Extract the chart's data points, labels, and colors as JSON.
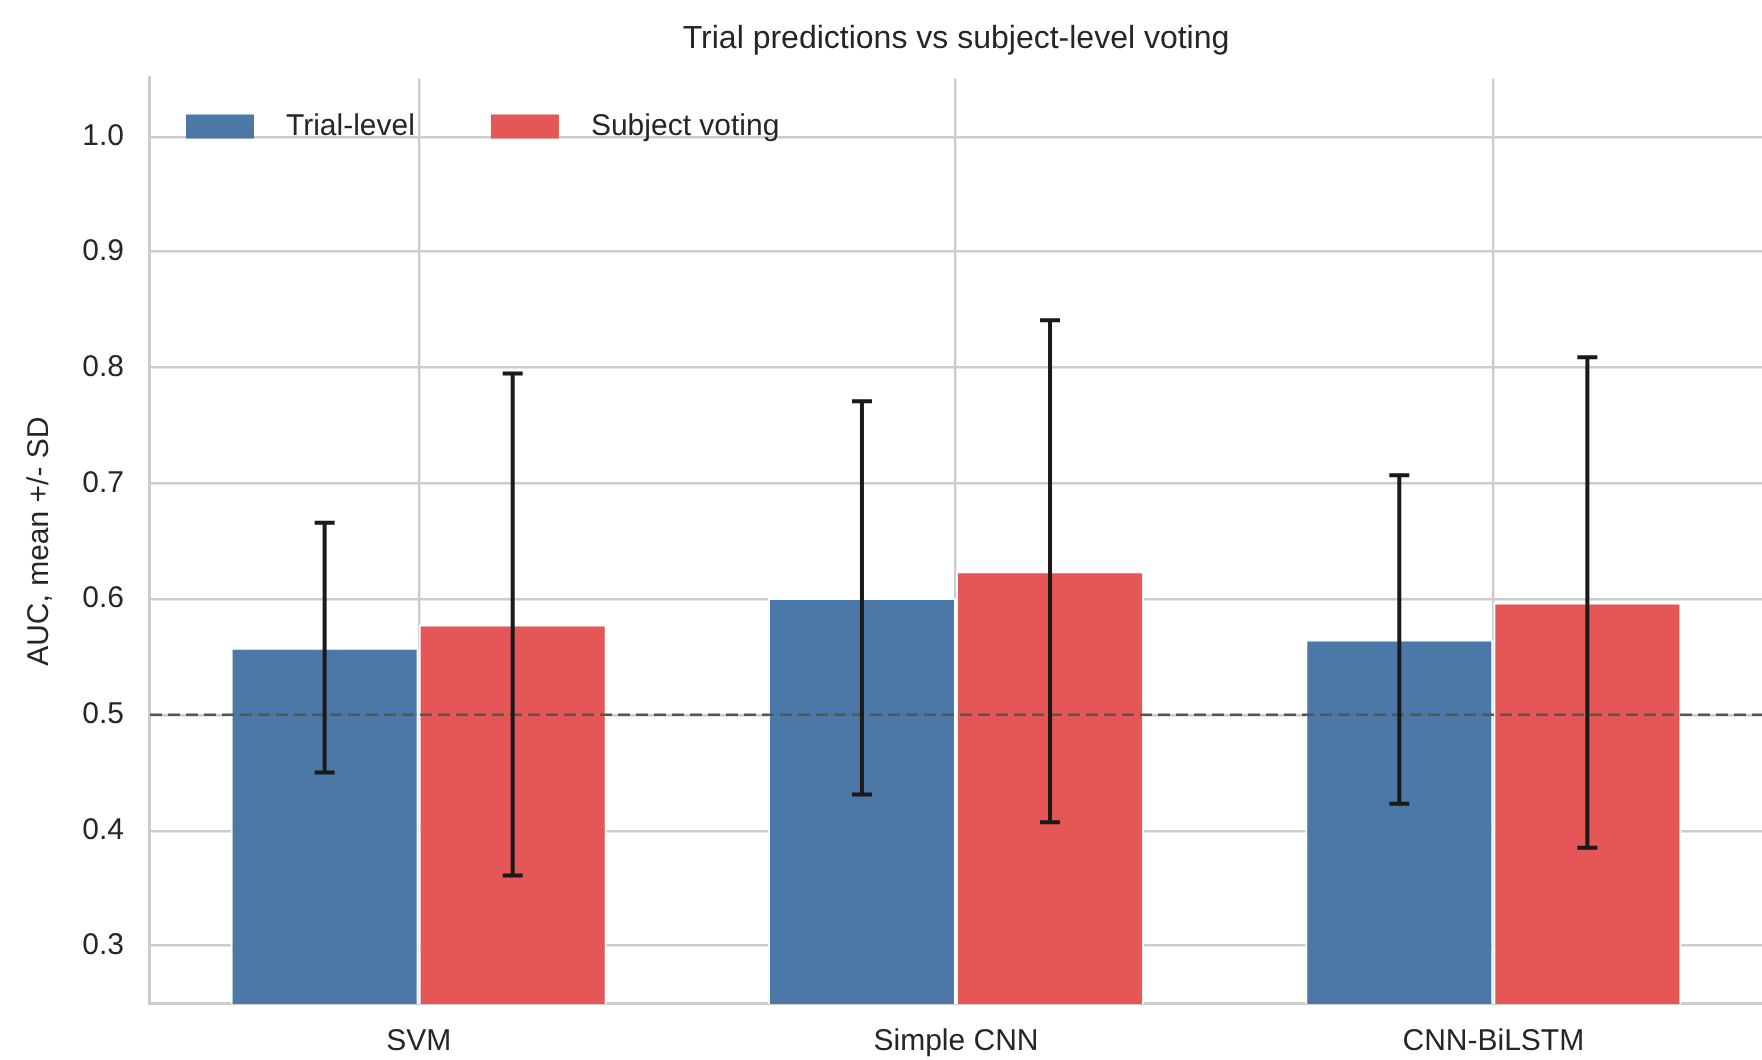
{
  "chart_data": {
    "type": "bar",
    "title": "Trial predictions vs subject-level voting",
    "ylabel": "AUC, mean +/- SD",
    "categories": [
      "SVM",
      "Simple CNN",
      "CNN-BiLSTM"
    ],
    "series": [
      {
        "name": "Trial-level",
        "color": "#4c78a8",
        "values": [
          0.558,
          0.601,
          0.565
        ],
        "errors": [
          0.108,
          0.17,
          0.142
        ]
      },
      {
        "name": "Subject voting",
        "color": "#e45756",
        "values": [
          0.578,
          0.624,
          0.597
        ],
        "errors": [
          0.217,
          0.217,
          0.212
        ]
      }
    ],
    "ylim": [
      0.25,
      1.05
    ],
    "yticks": [
      0.3,
      0.4,
      0.5,
      0.6,
      0.7,
      0.8,
      0.9,
      {
        "value": 1,
        "label": "1.0"
      }
    ],
    "grid": true,
    "legend": "top left",
    "ref_lines": [
      {
        "axis": "y",
        "value": 0.5,
        "color": "#555555",
        "line_style": "dashed"
      }
    ]
  }
}
